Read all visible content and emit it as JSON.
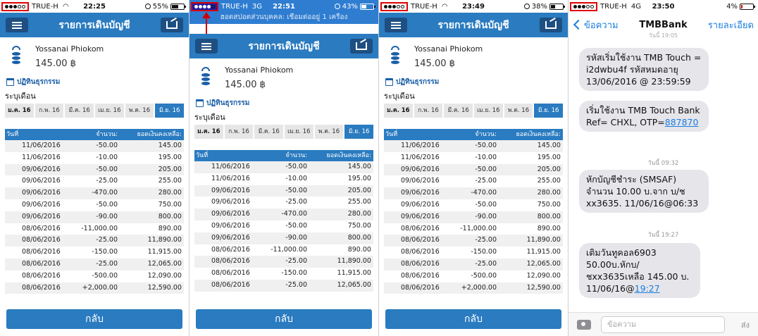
{
  "screens": [
    {
      "status": {
        "carrier": "TRUE-H",
        "net": "",
        "time": "22:25",
        "battery": "55%",
        "battery_level": 0.55
      },
      "app_title": "รายการเดินบัญชี",
      "account_name": "Yossanai Phiokom",
      "balance": "145.00 ฿",
      "calendar_label": "ปฏิทินธุรกรรม",
      "month_label": "ระบุเดือน",
      "back_label": "กลับ",
      "rows": [
        [
          "11/06/2016",
          "-50.00",
          "145.00"
        ],
        [
          "11/06/2016",
          "-10.00",
          "195.00"
        ],
        [
          "09/06/2016",
          "-50.00",
          "205.00"
        ],
        [
          "09/06/2016",
          "-25.00",
          "255.00"
        ],
        [
          "09/06/2016",
          "-470.00",
          "280.00"
        ],
        [
          "09/06/2016",
          "-50.00",
          "750.00"
        ],
        [
          "09/06/2016",
          "-90.00",
          "800.00"
        ],
        [
          "08/06/2016",
          "-11,000.00",
          "890.00"
        ],
        [
          "08/06/2016",
          "-25.00",
          "11,890.00"
        ],
        [
          "08/06/2016",
          "-150.00",
          "11,915.00"
        ],
        [
          "08/06/2016",
          "-25.00",
          "12,065.00"
        ],
        [
          "08/06/2016",
          "-500.00",
          "12,090.00"
        ],
        [
          "08/06/2016",
          "+2,000.00",
          "12,590.00"
        ]
      ]
    },
    {
      "status": {
        "carrier": "TRUE-H",
        "net": "3G",
        "time": "22:51",
        "battery": "43%",
        "battery_level": 0.43
      },
      "hotspot_message": "ฮอตสปอตส่วนบุคคล: เชื่อมต่ออยู่ 1 เครื่อง",
      "app_title": "รายการเดินบัญชี",
      "account_name": "Yossanai Phiokom",
      "balance": "145.00 ฿",
      "calendar_label": "ปฏิทินธุรกรรม",
      "month_label": "ระบุเดือน",
      "back_label": "กลับ",
      "rows": [
        [
          "11/06/2016",
          "-50.00",
          "145.00"
        ],
        [
          "11/06/2016",
          "-10.00",
          "195.00"
        ],
        [
          "09/06/2016",
          "-50.00",
          "205.00"
        ],
        [
          "09/06/2016",
          "-25.00",
          "255.00"
        ],
        [
          "09/06/2016",
          "-470.00",
          "280.00"
        ],
        [
          "09/06/2016",
          "-50.00",
          "750.00"
        ],
        [
          "09/06/2016",
          "-90.00",
          "800.00"
        ],
        [
          "08/06/2016",
          "-11,000.00",
          "890.00"
        ],
        [
          "08/06/2016",
          "-25.00",
          "11,890.00"
        ],
        [
          "08/06/2016",
          "-150.00",
          "11,915.00"
        ],
        [
          "08/06/2016",
          "-25.00",
          "12,065.00"
        ]
      ]
    },
    {
      "status": {
        "carrier": "TRUE-H",
        "net": "",
        "time": "23:49",
        "battery": "38%",
        "battery_level": 0.38
      },
      "app_title": "รายการเดินบัญชี",
      "account_name": "Yossanai Phiokom",
      "balance": "145.00 ฿",
      "calendar_label": "ปฏิทินธุรกรรม",
      "month_label": "ระบุเดือน",
      "back_label": "กลับ",
      "rows": [
        [
          "11/06/2016",
          "-50.00",
          "145.00"
        ],
        [
          "11/06/2016",
          "-10.00",
          "195.00"
        ],
        [
          "09/06/2016",
          "-50.00",
          "205.00"
        ],
        [
          "09/06/2016",
          "-25.00",
          "255.00"
        ],
        [
          "09/06/2016",
          "-470.00",
          "280.00"
        ],
        [
          "09/06/2016",
          "-50.00",
          "750.00"
        ],
        [
          "09/06/2016",
          "-90.00",
          "800.00"
        ],
        [
          "08/06/2016",
          "-11,000.00",
          "890.00"
        ],
        [
          "08/06/2016",
          "-25.00",
          "11,890.00"
        ],
        [
          "08/06/2016",
          "-150.00",
          "11,915.00"
        ],
        [
          "08/06/2016",
          "-25.00",
          "12,065.00"
        ],
        [
          "08/06/2016",
          "-500.00",
          "12,090.00"
        ],
        [
          "08/06/2016",
          "+2,000.00",
          "12,590.00"
        ]
      ]
    }
  ],
  "months": [
    "ม.ค. 16",
    "ก.พ. 16",
    "มี.ค. 16",
    "เม.ย. 16",
    "พ.ค. 16",
    "มิ.ย. 16"
  ],
  "selected_month": "มิ.ย. 16",
  "table_headers": [
    "วันที่",
    "จำนวน:",
    "ยอดเงินคงเหลือ:"
  ],
  "messages_screen": {
    "status": {
      "carrier": "TRUE-H",
      "net": "4G",
      "time": "23:50",
      "battery": "4%",
      "battery_level": 0.04
    },
    "back_label": "ข้อความ",
    "title": "TMBBank",
    "details_label": "รายละเอียด",
    "top_timestamp": "วันนี้ 19:05",
    "bubble1": "รหัสเริ่มใช้งาน TMB Touch = i2dwbu4f รหัสหมดอายุ 13/06/2016 @ 23:59:59",
    "bubble2_text": "เริ่มใช้งาน TMB Touch Bank Ref= CHXL, OTP=",
    "bubble2_link": "887870",
    "timestamp2": "วันนี้ 09:32",
    "bubble3": "หักบัญชีชำระ (SMSAF) จำนวน 10.00 บ.จาก บ/ช xx3635. 11/06/16@06:33",
    "timestamp3": "วันนี้ 19:27",
    "bubble4_text": "เติมวันทูคอล6903 50.00บ.หักบ/ชxx3635เหลือ 145.00 บ. 11/06/16@",
    "bubble4_link": "19:27",
    "input_placeholder": "ข้อความ",
    "send_label": "ส่ง"
  }
}
